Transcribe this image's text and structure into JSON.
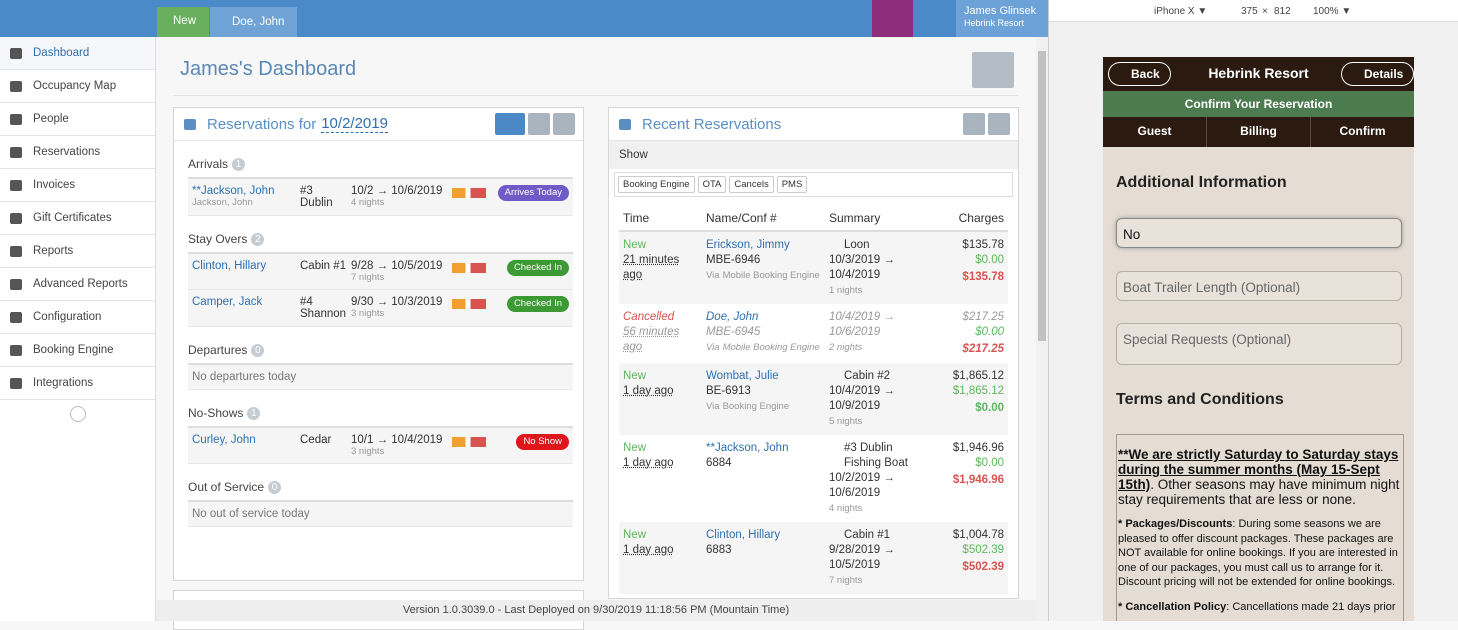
{
  "topbar": {
    "new": "New",
    "tab": "Doe, John",
    "user": "James Glinsek",
    "property": "Hebrink Resort"
  },
  "sidebar": [
    "Dashboard",
    "Occupancy Map",
    "People",
    "Reservations",
    "Invoices",
    "Gift Certificates",
    "Reports",
    "Advanced Reports",
    "Configuration",
    "Booking Engine",
    "Integrations"
  ],
  "dashboard_title": "James's Dashboard",
  "reservations_panel": {
    "title": "Reservations for",
    "date": "10/2/2019",
    "sections": [
      {
        "title": "Arrivals",
        "count": 1,
        "rows": [
          {
            "name": "**Jackson, John",
            "guest": "Jackson, John",
            "room": "#3 Dublin",
            "dates": "10/2 → 10/6/2019",
            "nights": "4 nights",
            "status": "Arrives Today",
            "status_color": "#6f5bc7"
          }
        ]
      },
      {
        "title": "Stay Overs",
        "count": 2,
        "rows": [
          {
            "name": "Clinton, Hillary",
            "room": "Cabin #1",
            "dates": "9/28 → 10/5/2019",
            "nights": "7 nights",
            "status": "Checked In",
            "status_color": "#3c9a34"
          },
          {
            "name": "Camper, Jack",
            "room": "#4 Shannon",
            "dates": "9/30 → 10/3/2019",
            "nights": "3 nights",
            "status": "Checked In",
            "status_color": "#3c9a34"
          }
        ]
      },
      {
        "title": "Departures",
        "count": 0,
        "empty": "No departures today"
      },
      {
        "title": "No-Shows",
        "count": 1,
        "rows": [
          {
            "name": "Curley, John",
            "room": "Cedar",
            "dates": "10/1 → 10/4/2019",
            "nights": "3 nights",
            "status": "No Show",
            "status_color": "#e0161d"
          }
        ]
      },
      {
        "title": "Out of Service",
        "count": 0,
        "empty": "No out of service today"
      }
    ]
  },
  "recent_panel": {
    "title": "Recent Reservations",
    "show": "Show",
    "filters": [
      "Booking Engine",
      "OTA",
      "Cancels",
      "PMS"
    ],
    "columns": [
      "Time",
      "Name/Conf #",
      "Summary",
      "Charges"
    ],
    "rows": [
      {
        "status": "New",
        "status_color": "#5cb85c",
        "time": "21 minutes ago",
        "name": "Erickson, Jimmy",
        "conf": "MBE-6946",
        "via": "Via",
        "source": "Mobile Booking Engine",
        "rooms": [
          "Loon"
        ],
        "dates": "10/3/2019 → 10/4/2019",
        "nights": "1 nights",
        "charges": [
          "$135.78",
          "$0.00",
          "$135.78"
        ],
        "balance_color": "#d9534f",
        "cancelled": false
      },
      {
        "status": "Cancelled",
        "status_color": "#d9534f",
        "time": "56 minutes ago",
        "name": "Doe, John",
        "conf": "MBE-6945",
        "via": "Via",
        "source": "Mobile Booking Engine",
        "rooms": [],
        "dates": "10/4/2019 → 10/6/2019",
        "nights": "2 nights",
        "charges": [
          "$217.25",
          "$0.00",
          "$217.25"
        ],
        "balance_color": "#d9534f",
        "cancelled": true
      },
      {
        "status": "New",
        "status_color": "#5cb85c",
        "time": "1 day ago",
        "name": "Wombat, Julie",
        "conf": "BE-6913",
        "via": "Via",
        "source": "Booking Engine",
        "rooms": [
          "Cabin #2"
        ],
        "dates": "10/4/2019 → 10/9/2019",
        "nights": "5 nights",
        "charges": [
          "$1,865.12",
          "$1,865.12",
          "$0.00"
        ],
        "balance_color": "#5cb85c",
        "cancelled": false
      },
      {
        "status": "New",
        "status_color": "#5cb85c",
        "time": "1 day ago",
        "name": "**Jackson, John",
        "conf": "6884",
        "rooms": [
          "#3 Dublin",
          "Fishing Boat"
        ],
        "dates": "10/2/2019 → 10/6/2019",
        "nights": "4 nights",
        "charges": [
          "$1,946.96",
          "$0.00",
          "$1,946.96"
        ],
        "balance_color": "#d9534f",
        "cancelled": false
      },
      {
        "status": "New",
        "status_color": "#5cb85c",
        "time": "1 day ago",
        "name": "Clinton, Hillary",
        "conf": "6883",
        "rooms": [
          "Cabin #1"
        ],
        "dates": "9/28/2019 → 10/5/2019",
        "nights": "7 nights",
        "charges": [
          "$1,004.78",
          "$502.39",
          "$502.39"
        ],
        "balance_color": "#d9534f",
        "cancelled": false
      }
    ]
  },
  "footer": "Version 1.0.3039.0 - Last Deployed on 9/30/2019 11:18:56 PM (Mountain Time)",
  "devtools": {
    "device": "iPhone X ▼",
    "width": "375",
    "times": "×",
    "height": "812",
    "zoom": "100% ▼"
  },
  "phone": {
    "back": "Back",
    "title": "Hebrink Resort",
    "details": "Details",
    "banner": "Confirm Your Reservation",
    "tabs": [
      "Guest",
      "Billing",
      "Confirm"
    ],
    "section": "Additional Information",
    "input_value": "No",
    "placeholders": [
      "Boat Trailer Length (Optional)",
      "Special Requests (Optional)"
    ],
    "terms_title": "Terms and Conditions",
    "terms": [
      {
        "strong": "**We are strictly Saturday to Saturday stays during the summer months (May 15-Sept 15th)",
        "text": ".  Other seasons may have minimum night stay requirements that are less or none."
      },
      {
        "strong": "* Packages/Discounts",
        "text": ": During some seasons we are pleased to offer discount packages. These packages are NOT available for online bookings. If you are interested in one of our packages, you must call us to arrange for it. Discount pricing will not be extended for online bookings."
      },
      {
        "strong": "* Cancellation Policy",
        "text": ": Cancellations made 21 days prior"
      }
    ]
  }
}
